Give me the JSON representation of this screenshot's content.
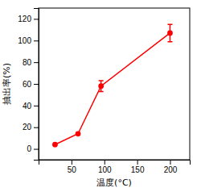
{
  "chart_data": {
    "type": "line",
    "x": [
      25,
      60,
      95,
      200
    ],
    "values": [
      4,
      14,
      58,
      107
    ],
    "yerr": [
      0,
      0,
      5,
      8
    ],
    "color": "#ff0000",
    "marker": "circle",
    "line_style": "solid",
    "xlabel": "温度(°C)",
    "ylabel": "抽出率(%)",
    "xlim": [
      0,
      230
    ],
    "ylim": [
      -10,
      130
    ],
    "xticks": [
      50,
      100,
      150,
      200
    ],
    "yticks": [
      0,
      20,
      40,
      60,
      80,
      100,
      120
    ],
    "grid": false
  }
}
